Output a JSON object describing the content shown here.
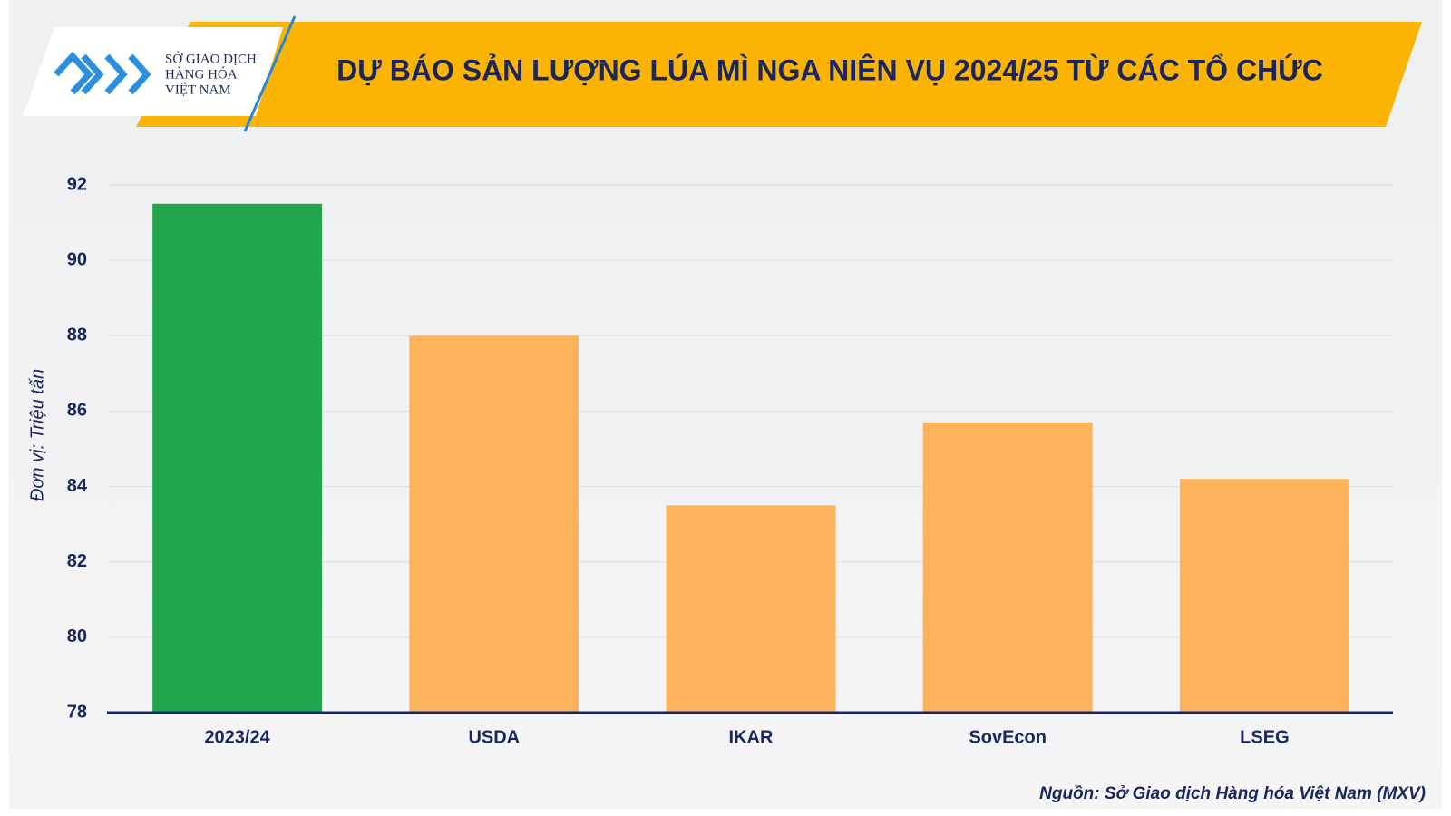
{
  "logo": {
    "lines": [
      "SỞ GIAO DỊCH",
      "HÀNG HÓA",
      "VIỆT NAM"
    ]
  },
  "chart_data": {
    "type": "bar",
    "title": "DỰ BÁO SẢN LƯỢNG LÚA MÌ NGA NIÊN VỤ 2024/25 TỪ CÁC TỔ CHỨC",
    "y_label": "Đơn vị: Triệu tấn",
    "source": "Nguồn: Sở Giao dịch Hàng hóa Việt Nam (MXV)",
    "categories": [
      "2023/24",
      "USDA",
      "IKAR",
      "SovEcon",
      "LSEG"
    ],
    "values": [
      91.5,
      88,
      83.5,
      85.7,
      84.2
    ],
    "colors": [
      "#22a64e",
      "#fdb35c",
      "#fdb35c",
      "#fdb35c",
      "#fdb35c"
    ],
    "ylim": [
      78,
      92
    ],
    "yticks": [
      78,
      80,
      82,
      84,
      86,
      88,
      90,
      92
    ],
    "grid": true
  }
}
